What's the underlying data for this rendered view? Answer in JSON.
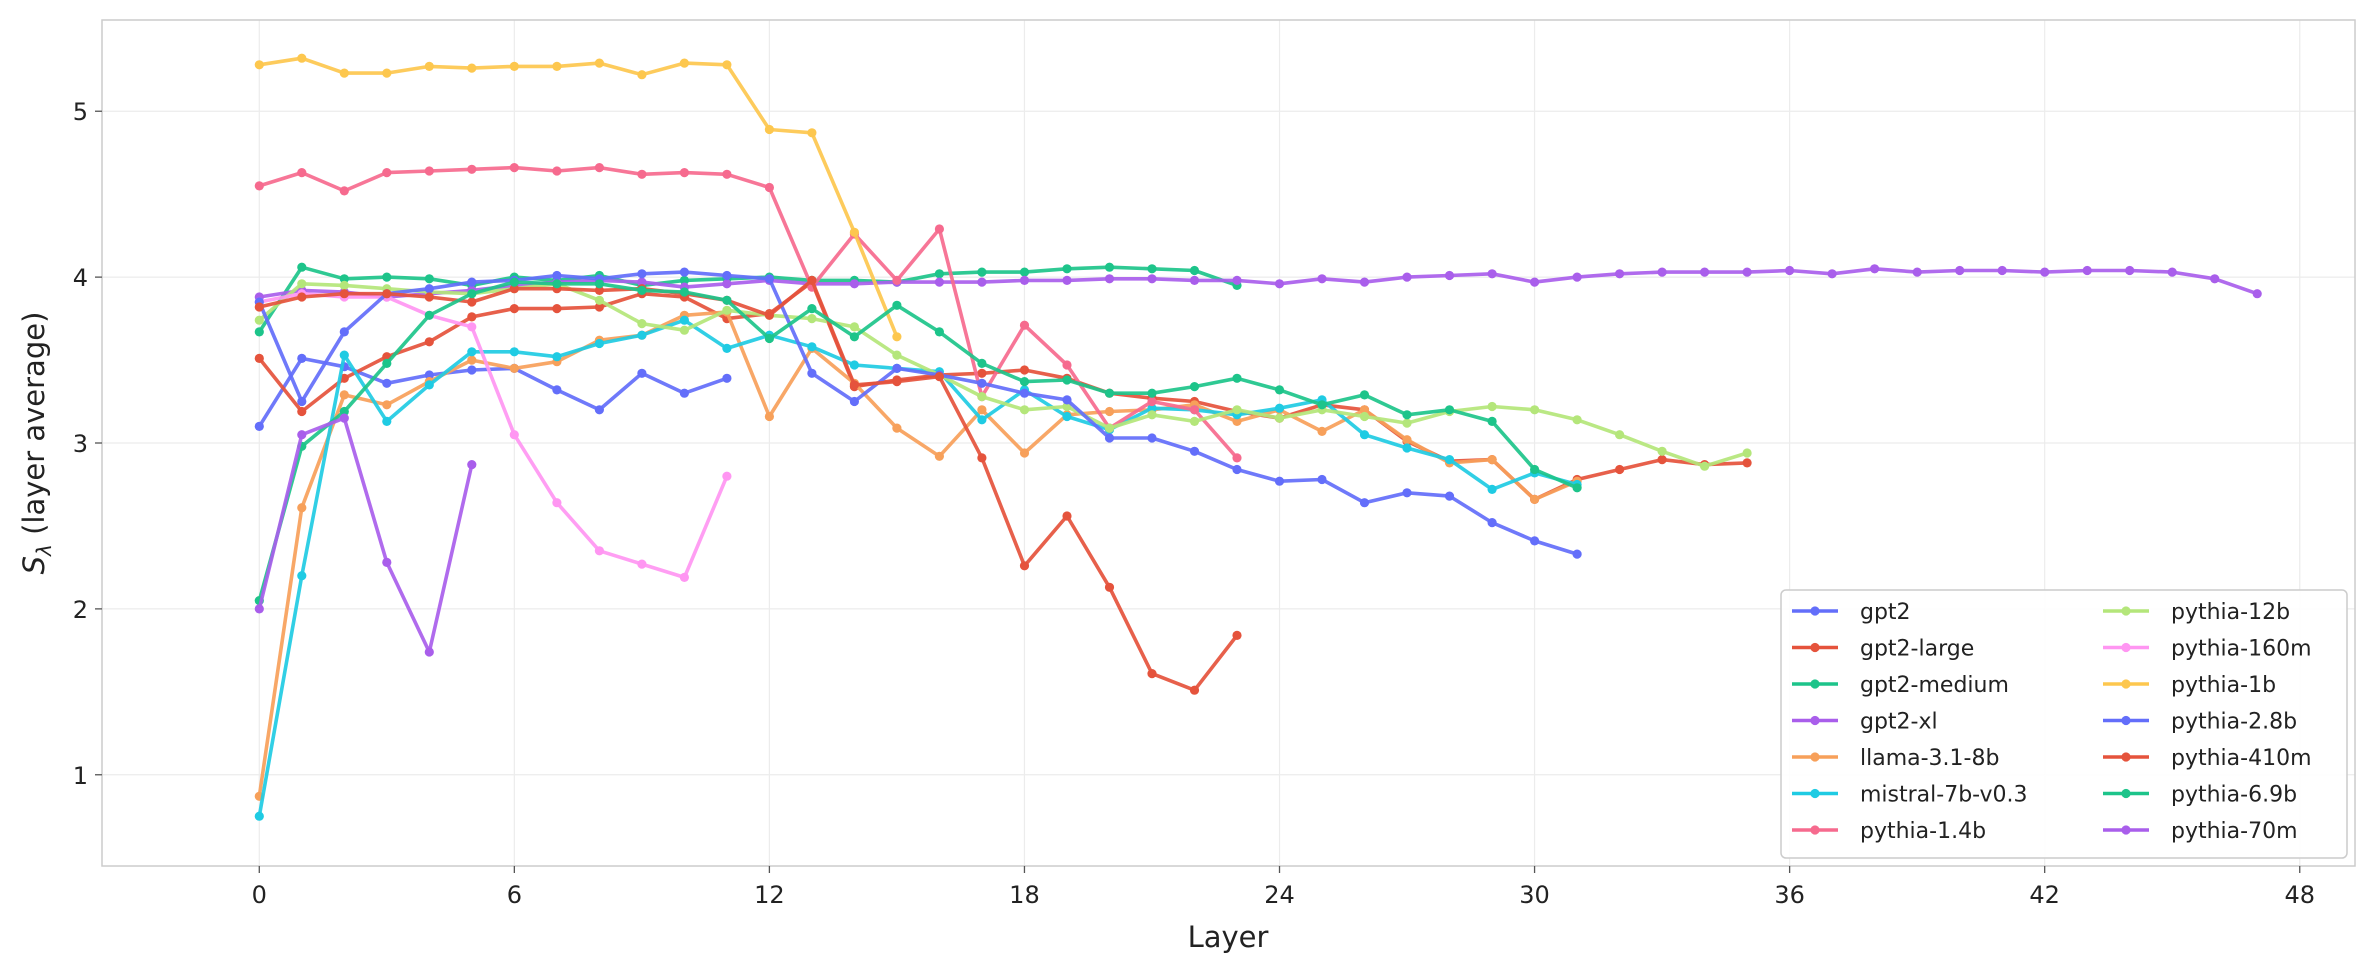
{
  "chart_data": {
    "type": "line",
    "xlabel": "Layer",
    "ylabel": "S_λ (layer average)",
    "ylabel_main": "S",
    "ylabel_sub": "λ",
    "ylabel_rest": " (layer average)",
    "xlim": [
      -3.7,
      49.3
    ],
    "ylim": [
      0.45,
      5.55
    ],
    "xticks": [
      0,
      6,
      12,
      18,
      24,
      30,
      36,
      42,
      48
    ],
    "yticks": [
      1,
      2,
      3,
      4,
      5
    ],
    "grid": true,
    "legend_position": "bottom-right",
    "legend_columns": 2,
    "series": [
      {
        "name": "gpt2",
        "color": "#636EFA",
        "y": [
          3.1,
          3.51,
          3.46,
          3.36,
          3.41,
          3.44,
          3.45,
          3.32,
          3.2,
          3.42,
          3.3,
          3.39
        ]
      },
      {
        "name": "gpt2-large",
        "color": "#E5533C",
        "y": [
          3.51,
          3.19,
          3.39,
          3.52,
          3.61,
          3.76,
          3.81,
          3.81,
          3.82,
          3.9,
          3.88,
          3.75,
          3.78,
          3.97,
          3.34,
          3.38,
          3.41,
          3.42,
          3.44,
          3.39,
          3.3,
          3.27,
          3.25,
          3.19,
          3.15,
          3.23,
          3.2,
          3.01,
          2.89,
          2.9,
          2.66,
          2.78,
          2.84,
          2.9,
          2.87,
          2.88
        ]
      },
      {
        "name": "gpt2-medium",
        "color": "#1DC48A",
        "y": [
          3.67,
          4.06,
          3.99,
          4.0,
          3.99,
          3.95,
          4.0,
          3.98,
          4.01,
          3.95,
          3.98,
          3.99,
          4.0,
          3.98,
          3.98,
          3.97,
          4.02,
          4.03,
          4.03,
          4.05,
          4.06,
          4.05,
          4.04,
          3.95
        ]
      },
      {
        "name": "gpt2-xl",
        "color": "#A95EEB",
        "y": [
          3.88,
          3.92,
          3.91,
          3.88,
          3.9,
          3.92,
          3.95,
          3.97,
          3.98,
          3.97,
          3.94,
          3.96,
          3.98,
          3.96,
          3.96,
          3.97,
          3.97,
          3.97,
          3.98,
          3.98,
          3.99,
          3.99,
          3.98,
          3.98,
          3.96,
          3.99,
          3.97,
          4.0,
          4.01,
          4.02,
          3.97,
          4.0,
          4.02,
          4.03,
          4.03,
          4.03,
          4.04,
          4.02,
          4.05,
          4.03,
          4.04,
          4.04,
          4.03,
          4.04,
          4.04,
          4.03,
          3.99,
          3.9
        ]
      },
      {
        "name": "llama-3.1-8b",
        "color": "#F7A05A",
        "y": [
          0.87,
          2.61,
          3.29,
          3.23,
          3.37,
          3.5,
          3.45,
          3.49,
          3.62,
          3.65,
          3.77,
          3.79,
          3.16,
          3.57,
          3.36,
          3.09,
          2.92,
          3.2,
          2.94,
          3.17,
          3.19,
          3.2,
          3.23,
          3.13,
          3.2,
          3.07,
          3.2,
          3.02,
          2.88,
          2.9,
          2.66,
          2.77
        ]
      },
      {
        "name": "mistral-7b-v0.3",
        "color": "#1FCBE3",
        "y": [
          0.75,
          2.2,
          3.53,
          3.13,
          3.35,
          3.55,
          3.55,
          3.52,
          3.6,
          3.65,
          3.74,
          3.57,
          3.65,
          3.58,
          3.47,
          3.45,
          3.43,
          3.14,
          3.32,
          3.16,
          3.08,
          3.21,
          3.2,
          3.17,
          3.21,
          3.26,
          3.05,
          2.97,
          2.9,
          2.72,
          2.82,
          2.75
        ]
      },
      {
        "name": "pythia-1.4b",
        "color": "#F66A8E",
        "y": [
          4.55,
          4.63,
          4.52,
          4.63,
          4.64,
          4.65,
          4.66,
          4.64,
          4.66,
          4.62,
          4.63,
          4.62,
          4.54,
          3.94,
          4.26,
          3.98,
          4.29,
          3.28,
          3.71,
          3.47,
          3.09,
          3.25,
          3.2,
          2.91
        ]
      },
      {
        "name": "pythia-12b",
        "color": "#B4E67A",
        "y": [
          3.74,
          3.96,
          3.95,
          3.93,
          3.91,
          3.9,
          3.93,
          3.96,
          3.86,
          3.72,
          3.68,
          3.8,
          3.77,
          3.75,
          3.7,
          3.53,
          3.41,
          3.28,
          3.2,
          3.22,
          3.09,
          3.17,
          3.13,
          3.2,
          3.15,
          3.2,
          3.16,
          3.12,
          3.19,
          3.22,
          3.2,
          3.14,
          3.05,
          2.95,
          2.86,
          2.94
        ]
      },
      {
        "name": "pythia-160m",
        "color": "#FF96F2",
        "y": [
          3.85,
          3.9,
          3.88,
          3.88,
          3.77,
          3.7,
          3.05,
          2.64,
          2.35,
          2.27,
          2.19,
          2.8
        ]
      },
      {
        "name": "pythia-1b",
        "color": "#FDC74E",
        "y": [
          5.28,
          5.32,
          5.23,
          5.23,
          5.27,
          5.26,
          5.27,
          5.27,
          5.29,
          5.22,
          5.29,
          5.28,
          4.89,
          4.87,
          4.27,
          3.64
        ]
      },
      {
        "name": "pythia-2.8b",
        "color": "#636EFA",
        "y": [
          3.85,
          3.25,
          3.67,
          3.9,
          3.93,
          3.97,
          3.98,
          4.01,
          3.99,
          4.02,
          4.03,
          4.01,
          3.99,
          3.42,
          3.25,
          3.45,
          3.41,
          3.36,
          3.3,
          3.26,
          3.03,
          3.03,
          2.95,
          2.84,
          2.77,
          2.78,
          2.64,
          2.7,
          2.68,
          2.52,
          2.41,
          2.33
        ]
      },
      {
        "name": "pythia-410m",
        "color": "#E5533C",
        "y": [
          3.82,
          3.88,
          3.9,
          3.9,
          3.88,
          3.85,
          3.93,
          3.93,
          3.92,
          3.93,
          3.9,
          3.86,
          3.77,
          3.98,
          3.35,
          3.37,
          3.4,
          2.91,
          2.26,
          2.56,
          2.13,
          1.61,
          1.51,
          1.84
        ]
      },
      {
        "name": "pythia-6.9b",
        "color": "#1DC48A",
        "y": [
          2.05,
          2.98,
          3.19,
          3.48,
          3.77,
          3.9,
          3.97,
          3.96,
          3.96,
          3.92,
          3.91,
          3.86,
          3.63,
          3.81,
          3.64,
          3.83,
          3.67,
          3.48,
          3.37,
          3.38,
          3.3,
          3.3,
          3.34,
          3.39,
          3.32,
          3.23,
          3.29,
          3.17,
          3.2,
          3.13,
          2.84,
          2.73
        ]
      },
      {
        "name": "pythia-70m",
        "color": "#A95EEB",
        "y": [
          2.0,
          3.05,
          3.15,
          2.28,
          1.74,
          2.87
        ]
      }
    ]
  }
}
